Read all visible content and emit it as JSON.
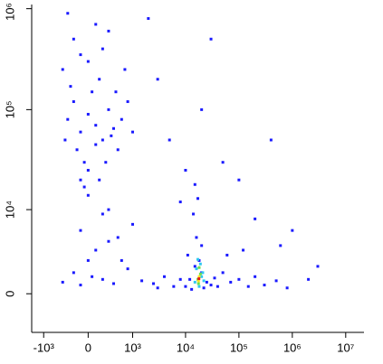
{
  "chart_data": {
    "type": "scatter",
    "xscale": "biexponential",
    "yscale": "biexponential",
    "xlim": [
      -1700,
      22000000
    ],
    "ylim": [
      -3000,
      1100000
    ],
    "xticks": [
      {
        "value": -1000,
        "label": "-10³"
      },
      0,
      {
        "value": 1000,
        "label": "10³"
      },
      {
        "value": 10000,
        "label": "10⁴"
      },
      {
        "value": 100000,
        "label": "10⁵"
      },
      {
        "value": 1000000,
        "label": "10⁶"
      },
      {
        "value": 10000000,
        "label": "10⁷"
      }
    ],
    "yticks": [
      0,
      {
        "value": 10000,
        "label": "10⁴"
      },
      {
        "value": 100000,
        "label": "10⁵"
      },
      {
        "value": 1000000,
        "label": "10⁶"
      }
    ],
    "series": [
      {
        "color": "#1a1aff",
        "x": [
          -300,
          -200,
          -100,
          0,
          100,
          200,
          300,
          400,
          500,
          -150,
          50,
          150,
          -50,
          250,
          600,
          800,
          -250,
          100,
          350,
          -400,
          0,
          200,
          -200,
          100,
          -300,
          300,
          -100,
          700,
          1000,
          -350,
          0,
          450,
          0,
          200,
          -100,
          300,
          100,
          500,
          0,
          -200,
          200,
          400,
          -100,
          600,
          800,
          1000,
          150,
          -50,
          1500,
          2500,
          4000,
          6000,
          8000,
          3000,
          10000,
          12000,
          15000,
          20000,
          25000,
          30000,
          13000,
          22000,
          35000,
          40000,
          18000,
          11000,
          16000,
          14000,
          17000,
          15000,
          20000,
          50000,
          70000,
          100000,
          150000,
          200000,
          300000,
          500000,
          800000,
          60000,
          120000,
          5000,
          20000,
          50000,
          100000,
          3000,
          8000,
          200000,
          1000000,
          2000,
          30000,
          400000,
          600000,
          2000000,
          10000,
          3000000,
          -100,
          300,
          -400,
          50
        ],
        "y": [
          80000,
          120000,
          60000,
          90000,
          70000,
          50000,
          100000,
          65000,
          40000,
          40000,
          150000,
          200000,
          30000,
          30000,
          80000,
          120000,
          170000,
          45000,
          55000,
          250000,
          300000,
          400000,
          500000,
          700000,
          900000,
          600000,
          350000,
          250000,
          60000,
          50000,
          25000,
          150000,
          14000,
          9000,
          6000,
          4500,
          3500,
          5000,
          2500,
          1500,
          1000,
          700,
          600,
          2500,
          1800,
          7000,
          20000,
          17000,
          900,
          700,
          1200,
          500,
          1000,
          400,
          500,
          1000,
          2000,
          1500,
          800,
          600,
          300,
          400,
          1100,
          500,
          2500,
          3000,
          5000,
          9000,
          13000,
          18000,
          4000,
          1500,
          800,
          1000,
          500,
          1200,
          600,
          900,
          400,
          3000,
          3500,
          50000,
          100000,
          30000,
          20000,
          200000,
          12000,
          8000,
          6000,
          800000,
          500000,
          50000,
          4000,
          1000,
          25000,
          2000,
          20000,
          10000,
          800,
          1200
        ]
      },
      {
        "color": "#2fc8f0",
        "x": [
          15000,
          20000,
          18000,
          22000,
          16000,
          19000,
          17000,
          21000
        ],
        "y": [
          800,
          1200,
          500,
          900,
          1800,
          2200,
          2600,
          1500
        ]
      },
      {
        "color": "#6fe04a",
        "x": [
          17000,
          19000,
          18000,
          17500
        ],
        "y": [
          1000,
          1400,
          1900,
          700
        ]
      },
      {
        "color": "#ffe020",
        "x": [
          18000,
          17500
        ],
        "y": [
          1200,
          900
        ]
      },
      {
        "color": "#e41a1a",
        "x": [
          17800
        ],
        "y": [
          1050
        ]
      }
    ]
  }
}
